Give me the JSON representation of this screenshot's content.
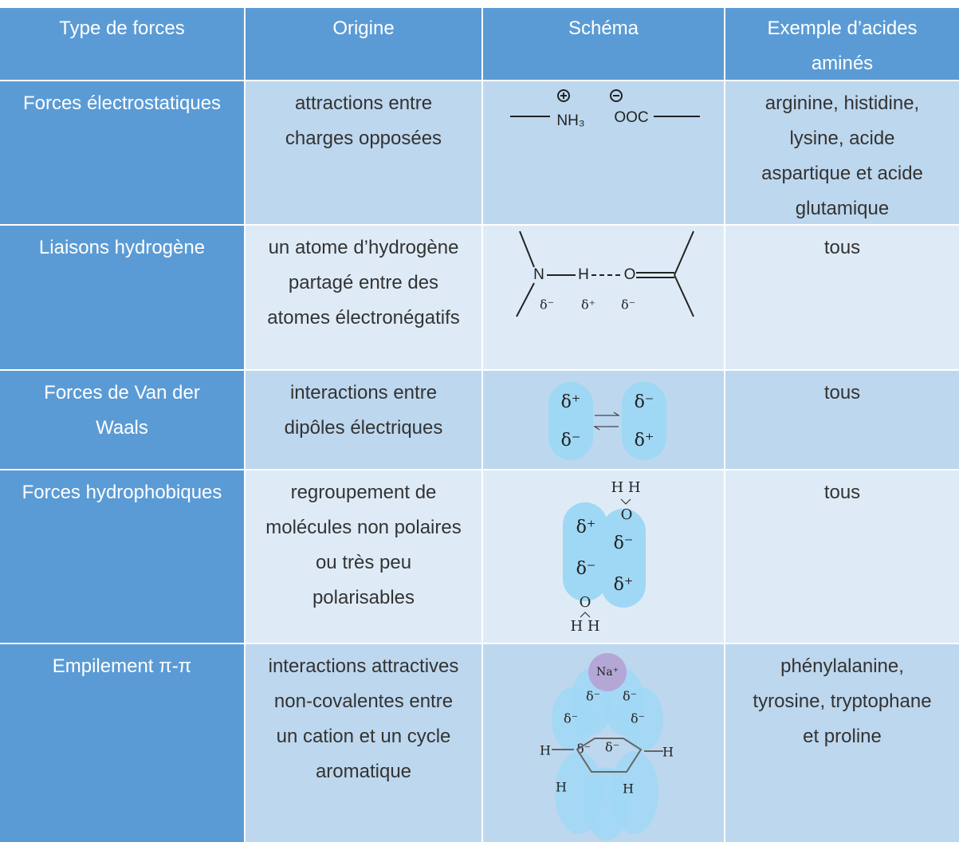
{
  "table": {
    "header": [
      "Type de forces",
      "Origine",
      "Schéma",
      "Exemple d’acides aminés"
    ],
    "rows": [
      {
        "type": "Forces électrostatiques",
        "origin": "attractions entre charges opposées",
        "schema": [
          "NH₃",
          "OOC"
        ],
        "examples": "arginine, histidine, lysine, acide aspartique et acide glutamique"
      },
      {
        "type": "Liaisons hydrogène",
        "origin": "un atome d’hydrogène partagé entre des atomes électronégatifs",
        "schema": [
          "N",
          "H",
          "O",
          "δ⁻",
          "δ⁺",
          "δ⁻"
        ],
        "examples": "tous"
      },
      {
        "type": "Forces de Van der Waals",
        "origin": "interactions entre dipôles électriques",
        "schema": [
          "δ⁺",
          "δ⁻",
          "δ⁻",
          "δ⁺"
        ],
        "examples": "tous"
      },
      {
        "type": "Forces hydrophobiques",
        "origin": "regroupement de molécules non polaires ou très peu polarisables",
        "schema": [
          "H H",
          "O",
          "δ⁺",
          "δ⁻",
          "δ⁻",
          "δ⁺",
          "O",
          "H H"
        ],
        "examples": "tous"
      },
      {
        "type": "Empilement π-π",
        "origin": "interactions attractives non-covalentes entre un cation et un cycle aromatique",
        "schema": [
          "Na⁺",
          "δ⁻",
          "δ⁻",
          "δ⁻",
          "δ⁻",
          "δ⁻",
          "δ⁻",
          "H",
          "H",
          "H",
          "H"
        ],
        "examples": "phénylalanine, tyrosine, tryptophane et proline"
      }
    ]
  }
}
